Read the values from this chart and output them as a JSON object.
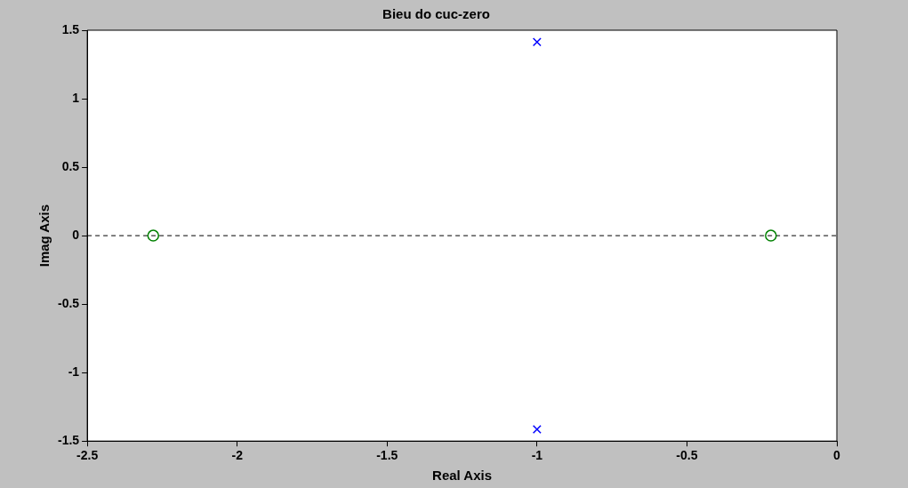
{
  "chart_data": {
    "type": "scatter",
    "title": "Bieu do cuc-zero",
    "xlabel": "Real Axis",
    "ylabel": "Imag Axis",
    "series": [
      {
        "color": "#0000ff",
        "marker": "cross",
        "x": [
          -1,
          -1
        ],
        "values": [
          1.414,
          -1.414
        ]
      },
      {
        "color": "#008000",
        "marker": "circle",
        "x": [
          -2.28,
          -0.22
        ],
        "values": [
          0,
          0
        ]
      }
    ],
    "xlim": [
      -2.5,
      0
    ],
    "xticks": [
      -2.5,
      -2,
      -1.5,
      -1,
      -0.5,
      0
    ],
    "ylim": [
      -1.5,
      1.5
    ],
    "yticks": [
      -1.5,
      -1,
      -0.5,
      0,
      0.5,
      1,
      1.5
    ],
    "ref_lines": [
      {
        "axis": "y",
        "value": 0,
        "color": "#000000",
        "line_style": "dashed"
      }
    ],
    "grid": false,
    "legend": false
  }
}
